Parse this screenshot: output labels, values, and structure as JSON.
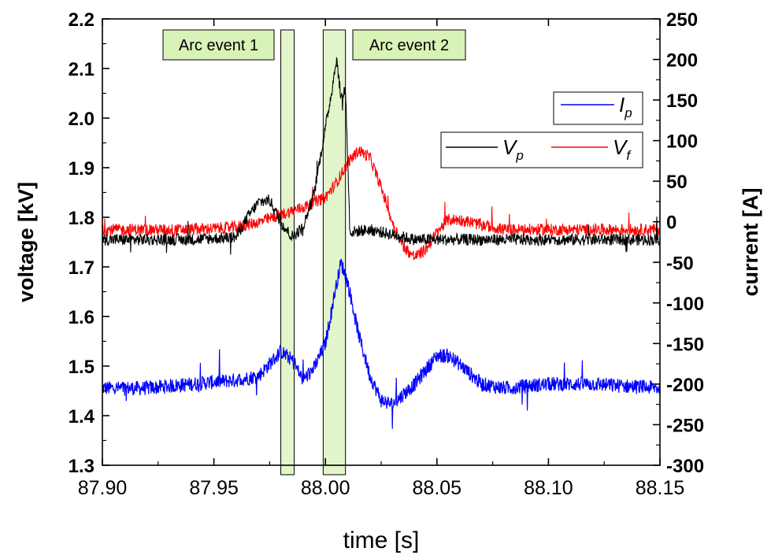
{
  "chart_data": {
    "type": "line",
    "xlabel": "time [s]",
    "ylabel_left": "voltage [kV]",
    "ylabel_right": "current [A]",
    "xlim": [
      87.9,
      88.15
    ],
    "ylim_left": [
      1.3,
      2.2
    ],
    "ylim_right": [
      -300,
      250
    ],
    "x_ticks": [
      "87.90",
      "87.95",
      "88.00",
      "88.05",
      "88.10",
      "88.15"
    ],
    "y_left_ticks": [
      "1.3",
      "1.4",
      "1.5",
      "1.6",
      "1.7",
      "1.8",
      "1.9",
      "2.0",
      "2.1",
      "2.2"
    ],
    "y_right_ticks": [
      "-300",
      "-250",
      "-200",
      "-150",
      "-100",
      "-50",
      "0",
      "50",
      "100",
      "150",
      "200",
      "250"
    ],
    "grid": false,
    "legend": [
      {
        "symbol": "I",
        "sub": "p",
        "color": "#0000ff",
        "axis": "right"
      },
      {
        "symbol": "V",
        "sub": "p",
        "color": "#000000",
        "axis": "left"
      },
      {
        "symbol": "V",
        "sub": "f",
        "color": "#ff0000",
        "axis": "left"
      }
    ],
    "annotations": [
      {
        "label": "Arc event 1",
        "x_range": [
          87.98,
          87.986
        ]
      },
      {
        "label": "Arc event 2",
        "x_range": [
          87.999,
          88.009
        ]
      }
    ],
    "series": [
      {
        "name": "V_p",
        "axis": "left",
        "color": "#000000",
        "x": [
          87.9,
          87.92,
          87.94,
          87.96,
          87.965,
          87.97,
          87.975,
          87.98,
          87.985,
          87.99,
          87.995,
          88.0,
          88.003,
          88.005,
          88.007,
          88.009,
          88.011,
          88.02,
          88.03,
          88.04,
          88.06,
          88.08,
          88.1,
          88.12,
          88.15
        ],
        "y": [
          1.755,
          1.755,
          1.755,
          1.76,
          1.8,
          1.83,
          1.835,
          1.79,
          1.76,
          1.78,
          1.85,
          1.98,
          2.06,
          2.12,
          2.04,
          2.06,
          1.77,
          1.775,
          1.765,
          1.755,
          1.755,
          1.755,
          1.755,
          1.755,
          1.755
        ],
        "noise": 0.012
      },
      {
        "name": "V_f",
        "axis": "left",
        "color": "#ff0000",
        "x": [
          87.9,
          87.92,
          87.94,
          87.96,
          87.97,
          87.98,
          87.99,
          88.0,
          88.005,
          88.01,
          88.015,
          88.02,
          88.025,
          88.03,
          88.035,
          88.04,
          88.045,
          88.05,
          88.055,
          88.06,
          88.07,
          88.08,
          88.1,
          88.12,
          88.15
        ],
        "y": [
          1.775,
          1.775,
          1.775,
          1.78,
          1.79,
          1.805,
          1.82,
          1.84,
          1.87,
          1.91,
          1.935,
          1.92,
          1.86,
          1.79,
          1.74,
          1.72,
          1.735,
          1.77,
          1.795,
          1.795,
          1.785,
          1.775,
          1.775,
          1.775,
          1.775
        ],
        "noise": 0.012
      },
      {
        "name": "I_p",
        "axis": "right",
        "color": "#0000ff",
        "x": [
          87.9,
          87.92,
          87.94,
          87.96,
          87.97,
          87.975,
          87.98,
          87.985,
          87.99,
          87.995,
          88.0,
          88.004,
          88.007,
          88.01,
          88.015,
          88.02,
          88.025,
          88.03,
          88.04,
          88.05,
          88.055,
          88.06,
          88.07,
          88.08,
          88.1,
          88.12,
          88.15
        ],
        "y": [
          -205,
          -205,
          -200,
          -195,
          -190,
          -175,
          -160,
          -170,
          -195,
          -180,
          -150,
          -90,
          -50,
          -75,
          -140,
          -190,
          -220,
          -225,
          -200,
          -165,
          -165,
          -175,
          -200,
          -205,
          -200,
          -200,
          -205
        ],
        "noise": 9
      }
    ]
  }
}
